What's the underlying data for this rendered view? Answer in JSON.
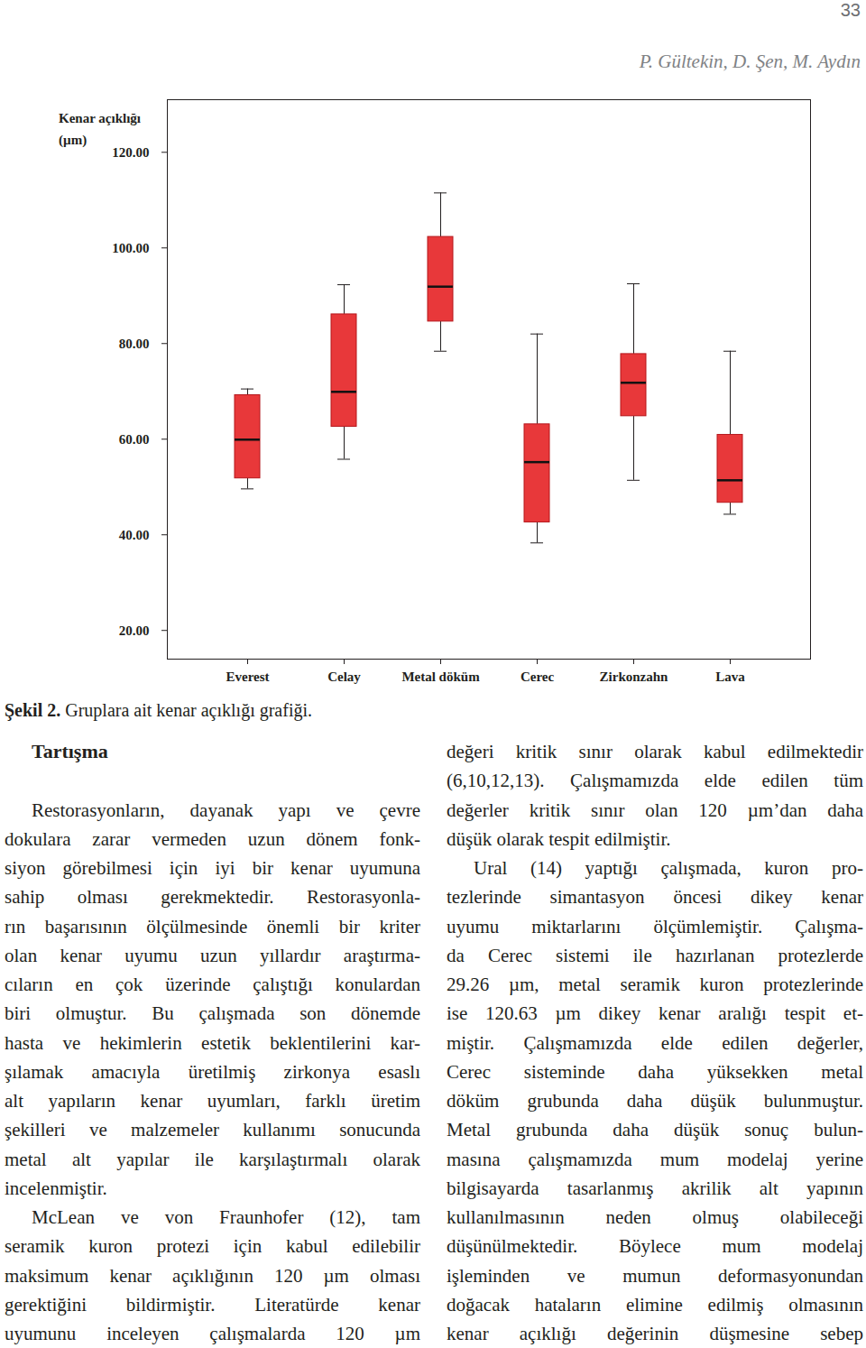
{
  "header": {
    "page_number": "33",
    "authors": "P. Gültekin, D. Şen, M. Aydın"
  },
  "chart_data": {
    "type": "box",
    "y_label_lines": [
      "Kenar açıklığı",
      "(µm)"
    ],
    "categories": [
      "Everest",
      "Celay",
      "Metal döküm",
      "Cerec",
      "Zirkonzahn",
      "Lava"
    ],
    "min": [
      49.6,
      55.8,
      78.4,
      38.3,
      51.4,
      44.3
    ],
    "q1": [
      51.8,
      62.6,
      84.6,
      42.6,
      64.8,
      46.7
    ],
    "median": [
      59.9,
      69.9,
      91.9,
      55.2,
      71.8,
      51.4
    ],
    "q3": [
      69.2,
      86.1,
      102.3,
      63.1,
      77.8,
      60.9
    ],
    "max": [
      70.5,
      92.3,
      111.5,
      82.0,
      92.5,
      78.4
    ],
    "color": "#e8383a",
    "ylim": [
      14,
      131
    ],
    "yticks": [
      {
        "value": 20,
        "label": "20.00"
      },
      {
        "value": 40,
        "label": "40.00"
      },
      {
        "value": 60,
        "label": "60.00"
      },
      {
        "value": 80,
        "label": "80.00"
      },
      {
        "value": 100,
        "label": "100.00"
      },
      {
        "value": 120,
        "label": "120.00"
      }
    ],
    "grid": false
  },
  "caption": {
    "label": "Şekil 2.",
    "text": "Gruplara ait kenar açıklığı grafiği."
  },
  "discussion": {
    "heading": "Tartışma",
    "left_column": [
      [
        "Restorasyonların, dayanak yapı ve çevre",
        "dokulara zarar vermeden uzun dönem fonk-",
        "siyon görebilmesi için iyi bir kenar uyumuna",
        "sahip olması gerekmektedir. Restorasyonla-",
        "rın başarısının ölçülmesinde önemli bir kriter",
        "olan kenar uyumu uzun yıllardır araştırma-",
        "cıların en çok üzerinde çalıştığı konulardan",
        "biri olmuştur. Bu çalışmada son dönemde",
        "hasta ve hekimlerin estetik beklentilerini kar-",
        "şılamak amacıyla üretilmiş zirkonya esaslı",
        "alt yapıların kenar uyumları, farklı üretim",
        "şekilleri ve malzemeler kullanımı sonucunda",
        "metal alt yapılar ile karşılaştırmalı olarak",
        "incelenmiştir."
      ],
      [
        "McLean ve von Fraunhofer (12), tam",
        "seramik kuron protezi için kabul edilebilir",
        "maksimum kenar açıklığının 120 µm olması",
        "gerektiğini bildirmiştir. Literatürde kenar",
        "uyumunu inceleyen çalışmalarda 120 µm"
      ]
    ],
    "right_column": [
      [
        "değeri kritik sınır olarak kabul edilmektedir",
        "(6,10,12,13). Çalışmamızda elde edilen tüm",
        "değerler kritik sınır olan 120 µm’dan daha",
        "düşük olarak tespit edilmiştir."
      ],
      [
        "Ural (14) yaptığı çalışmada, kuron pro-",
        "tezlerinde simantasyon öncesi dikey kenar",
        "uyumu miktarlarını ölçümlemiştir. Çalışma-",
        "da Cerec sistemi ile hazırlanan protezlerde",
        "29.26 µm, metal seramik kuron protezlerinde",
        "ise 120.63 µm dikey kenar aralığı tespit et-",
        "miştir. Çalışmamızda elde edilen değerler,",
        "Cerec sisteminde daha yüksekken metal",
        "döküm grubunda daha düşük bulunmuştur.",
        "Metal grubunda daha düşük sonuç bulun-",
        "masına çalışmamızda mum modelaj yerine",
        "bilgisayarda tasarlanmış akrilik alt yapının",
        "kullanılmasının neden olmuş olabileceği",
        "düşünülmektedir. Böylece mum modelaj",
        "işleminden ve mumun deformasyonundan",
        "doğacak hataların elimine edilmiş olmasının",
        "kenar açıklığı değerinin düşmesine sebep"
      ]
    ]
  }
}
